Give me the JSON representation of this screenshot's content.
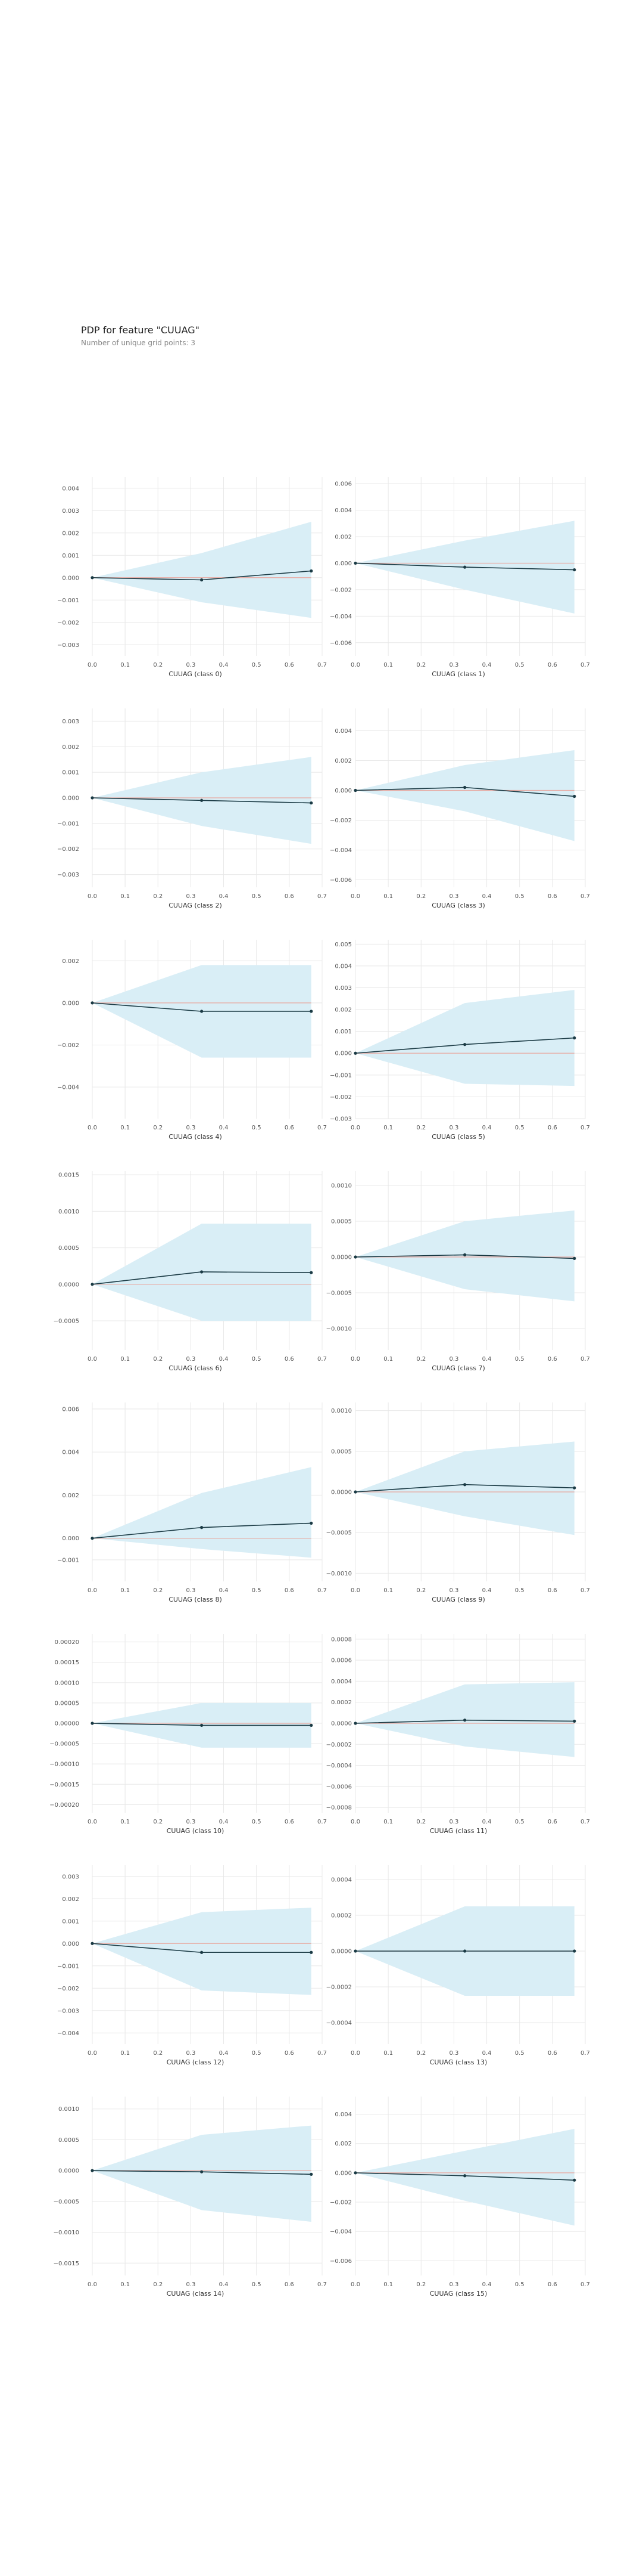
{
  "page": {
    "title": "PDP for feature \"CUUAG\"",
    "subtitle": "Number of unique grid points: 3"
  },
  "colors": {
    "band": "#d9eef6",
    "line": "#1a3a44",
    "zero": "#e8a8a0",
    "grid": "#e8e8e8"
  },
  "chart_data": [
    {
      "type": "line",
      "xlabel": "CUUAG (class 0)",
      "x": [
        0,
        0.333,
        0.667
      ],
      "y": [
        0,
        -0.0001,
        0.0003
      ],
      "band_low": [
        0,
        -0.0011,
        -0.0018
      ],
      "band_high": [
        0,
        0.0011,
        0.0025
      ],
      "xlim": [
        0,
        0.7
      ],
      "ylim": [
        -0.0035,
        0.0045
      ],
      "xticks": [
        "0.0",
        "0.1",
        "0.2",
        "0.3",
        "0.4",
        "0.5",
        "0.6",
        "0.7"
      ],
      "yticks": [
        {
          "v": 0.004,
          "l": "0.004"
        },
        {
          "v": 0.003,
          "l": "0.003"
        },
        {
          "v": 0.002,
          "l": "0.002"
        },
        {
          "v": 0.001,
          "l": "0.001"
        },
        {
          "v": 0,
          "l": "0.000"
        },
        {
          "v": -0.001,
          "l": "−0.001"
        },
        {
          "v": -0.002,
          "l": "−0.002"
        },
        {
          "v": -0.003,
          "l": "−0.003"
        }
      ]
    },
    {
      "type": "line",
      "xlabel": "CUUAG (class 1)",
      "x": [
        0,
        0.333,
        0.667
      ],
      "y": [
        0,
        -0.0003,
        -0.0005
      ],
      "band_low": [
        0,
        -0.002,
        -0.0038
      ],
      "band_high": [
        0,
        0.0017,
        0.0032
      ],
      "xlim": [
        0,
        0.7
      ],
      "ylim": [
        -0.007,
        0.0065
      ],
      "xticks": [
        "0.0",
        "0.1",
        "0.2",
        "0.3",
        "0.4",
        "0.5",
        "0.6",
        "0.7"
      ],
      "yticks": [
        {
          "v": 0.006,
          "l": "0.006"
        },
        {
          "v": 0.004,
          "l": "0.004"
        },
        {
          "v": 0.002,
          "l": "0.002"
        },
        {
          "v": 0,
          "l": "0.000"
        },
        {
          "v": -0.002,
          "l": "−0.002"
        },
        {
          "v": -0.004,
          "l": "−0.004"
        },
        {
          "v": -0.006,
          "l": "−0.006"
        }
      ]
    },
    {
      "type": "line",
      "xlabel": "CUUAG (class 2)",
      "x": [
        0,
        0.333,
        0.667
      ],
      "y": [
        0,
        -0.0001,
        -0.0002
      ],
      "band_low": [
        0,
        -0.0011,
        -0.0018
      ],
      "band_high": [
        0,
        0.001,
        0.0016
      ],
      "xlim": [
        0,
        0.7
      ],
      "ylim": [
        -0.0035,
        0.0035
      ],
      "xticks": [
        "0.0",
        "0.1",
        "0.2",
        "0.3",
        "0.4",
        "0.5",
        "0.6",
        "0.7"
      ],
      "yticks": [
        {
          "v": 0.003,
          "l": "0.003"
        },
        {
          "v": 0.002,
          "l": "0.002"
        },
        {
          "v": 0.001,
          "l": "0.001"
        },
        {
          "v": 0,
          "l": "0.000"
        },
        {
          "v": -0.001,
          "l": "−0.001"
        },
        {
          "v": -0.002,
          "l": "−0.002"
        },
        {
          "v": -0.003,
          "l": "−0.003"
        }
      ]
    },
    {
      "type": "line",
      "xlabel": "CUUAG (class 3)",
      "x": [
        0,
        0.333,
        0.667
      ],
      "y": [
        0,
        0.0002,
        -0.0004
      ],
      "band_low": [
        0,
        -0.0014,
        -0.0034
      ],
      "band_high": [
        0,
        0.0017,
        0.0027
      ],
      "xlim": [
        0,
        0.7
      ],
      "ylim": [
        -0.0065,
        0.0055
      ],
      "xticks": [
        "0.0",
        "0.1",
        "0.2",
        "0.3",
        "0.4",
        "0.5",
        "0.6",
        "0.7"
      ],
      "yticks": [
        {
          "v": 0.004,
          "l": "0.004"
        },
        {
          "v": 0.002,
          "l": "0.002"
        },
        {
          "v": 0,
          "l": "0.000"
        },
        {
          "v": -0.002,
          "l": "−0.002"
        },
        {
          "v": -0.004,
          "l": "−0.004"
        },
        {
          "v": -0.006,
          "l": "−0.006"
        }
      ]
    },
    {
      "type": "line",
      "xlabel": "CUUAG (class 4)",
      "x": [
        0,
        0.333,
        0.667
      ],
      "y": [
        0,
        -0.0004,
        -0.0004
      ],
      "band_low": [
        0,
        -0.0026,
        -0.0026
      ],
      "band_high": [
        0,
        0.0018,
        0.0018
      ],
      "xlim": [
        0,
        0.7
      ],
      "ylim": [
        -0.0055,
        0.003
      ],
      "xticks": [
        "0.0",
        "0.1",
        "0.2",
        "0.3",
        "0.4",
        "0.5",
        "0.6",
        "0.7"
      ],
      "yticks": [
        {
          "v": 0.002,
          "l": "0.002"
        },
        {
          "v": 0,
          "l": "0.000"
        },
        {
          "v": -0.002,
          "l": "−0.002"
        },
        {
          "v": -0.004,
          "l": "−0.004"
        }
      ]
    },
    {
      "type": "line",
      "xlabel": "CUUAG (class 5)",
      "x": [
        0,
        0.333,
        0.667
      ],
      "y": [
        0,
        0.0004,
        0.0007
      ],
      "band_low": [
        0,
        -0.0014,
        -0.0015
      ],
      "band_high": [
        0,
        0.0023,
        0.0029
      ],
      "xlim": [
        0,
        0.7
      ],
      "ylim": [
        -0.003,
        0.0052
      ],
      "xticks": [
        "0.0",
        "0.1",
        "0.2",
        "0.3",
        "0.4",
        "0.5",
        "0.6",
        "0.7"
      ],
      "yticks": [
        {
          "v": 0.005,
          "l": "0.005"
        },
        {
          "v": 0.004,
          "l": "0.004"
        },
        {
          "v": 0.003,
          "l": "0.003"
        },
        {
          "v": 0.002,
          "l": "0.002"
        },
        {
          "v": 0.001,
          "l": "0.001"
        },
        {
          "v": 0,
          "l": "0.000"
        },
        {
          "v": -0.001,
          "l": "−0.001"
        },
        {
          "v": -0.002,
          "l": "−0.002"
        },
        {
          "v": -0.003,
          "l": "−0.003"
        }
      ]
    },
    {
      "type": "line",
      "xlabel": "CUUAG (class 6)",
      "x": [
        0,
        0.333,
        0.667
      ],
      "y": [
        0,
        0.00017,
        0.00016
      ],
      "band_low": [
        0,
        -0.0005,
        -0.0005
      ],
      "band_high": [
        0,
        0.00083,
        0.00083
      ],
      "xlim": [
        0,
        0.7
      ],
      "ylim": [
        -0.0009,
        0.00155
      ],
      "xticks": [
        "0.0",
        "0.1",
        "0.2",
        "0.3",
        "0.4",
        "0.5",
        "0.6",
        "0.7"
      ],
      "yticks": [
        {
          "v": 0.0015,
          "l": "0.0015"
        },
        {
          "v": 0.001,
          "l": "0.0010"
        },
        {
          "v": 0.0005,
          "l": "0.0005"
        },
        {
          "v": 0,
          "l": "0.0000"
        },
        {
          "v": -0.0005,
          "l": "−0.0005"
        }
      ]
    },
    {
      "type": "line",
      "xlabel": "CUUAG (class 7)",
      "x": [
        0,
        0.333,
        0.667
      ],
      "y": [
        0,
        3e-05,
        -2e-05
      ],
      "band_low": [
        0,
        -0.00045,
        -0.00062
      ],
      "band_high": [
        0,
        0.0005,
        0.00065
      ],
      "xlim": [
        0,
        0.7
      ],
      "ylim": [
        -0.0013,
        0.0012
      ],
      "xticks": [
        "0.0",
        "0.1",
        "0.2",
        "0.3",
        "0.4",
        "0.5",
        "0.6",
        "0.7"
      ],
      "yticks": [
        {
          "v": 0.001,
          "l": "0.0010"
        },
        {
          "v": 0.0005,
          "l": "0.0005"
        },
        {
          "v": 0,
          "l": "0.0000"
        },
        {
          "v": -0.0005,
          "l": "−0.0005"
        },
        {
          "v": -0.001,
          "l": "−0.0010"
        }
      ]
    },
    {
      "type": "line",
      "xlabel": "CUUAG (class 8)",
      "x": [
        0,
        0.333,
        0.667
      ],
      "y": [
        0,
        0.0005,
        0.0007
      ],
      "band_low": [
        0,
        -0.0005,
        -0.0009
      ],
      "band_high": [
        0,
        0.0021,
        0.0033
      ],
      "xlim": [
        0,
        0.7
      ],
      "ylim": [
        -0.002,
        0.0063
      ],
      "xticks": [
        "0.0",
        "0.1",
        "0.2",
        "0.3",
        "0.4",
        "0.5",
        "0.6",
        "0.7"
      ],
      "yticks": [
        {
          "v": 0.006,
          "l": "0.006"
        },
        {
          "v": 0.004,
          "l": "0.004"
        },
        {
          "v": 0.002,
          "l": "0.002"
        },
        {
          "v": 0,
          "l": "0.000"
        },
        {
          "v": -0.001,
          "l": "−0.001"
        }
      ]
    },
    {
      "type": "line",
      "xlabel": "CUUAG (class 9)",
      "x": [
        0,
        0.333,
        0.667
      ],
      "y": [
        0,
        9e-05,
        5e-05
      ],
      "band_low": [
        0,
        -0.0003,
        -0.00053
      ],
      "band_high": [
        0,
        0.0005,
        0.00062
      ],
      "xlim": [
        0,
        0.7
      ],
      "ylim": [
        -0.0011,
        0.0011
      ],
      "xticks": [
        "0.0",
        "0.1",
        "0.2",
        "0.3",
        "0.4",
        "0.5",
        "0.6",
        "0.7"
      ],
      "yticks": [
        {
          "v": 0.001,
          "l": "0.0010"
        },
        {
          "v": 0.0005,
          "l": "0.0005"
        },
        {
          "v": 0,
          "l": "0.0000"
        },
        {
          "v": -0.0005,
          "l": "−0.0005"
        },
        {
          "v": -0.001,
          "l": "−0.0010"
        }
      ]
    },
    {
      "type": "line",
      "xlabel": "CUUAG (class 10)",
      "x": [
        0,
        0.333,
        0.667
      ],
      "y": [
        0,
        -5e-06,
        -5e-06
      ],
      "band_low": [
        0,
        -6e-05,
        -6e-05
      ],
      "band_high": [
        0,
        5e-05,
        5e-05
      ],
      "xlim": [
        0,
        0.7
      ],
      "ylim": [
        -0.00022,
        0.00022
      ],
      "xticks": [
        "0.0",
        "0.1",
        "0.2",
        "0.3",
        "0.4",
        "0.5",
        "0.6",
        "0.7"
      ],
      "yticks": [
        {
          "v": 0.0002,
          "l": "0.00020"
        },
        {
          "v": 0.00015,
          "l": "0.00015"
        },
        {
          "v": 0.0001,
          "l": "0.00010"
        },
        {
          "v": 5e-05,
          "l": "0.00005"
        },
        {
          "v": 0,
          "l": "0.00000"
        },
        {
          "v": -5e-05,
          "l": "−0.00005"
        },
        {
          "v": -0.0001,
          "l": "−0.00010"
        },
        {
          "v": -0.00015,
          "l": "−0.00015"
        },
        {
          "v": -0.0002,
          "l": "−0.00020"
        }
      ]
    },
    {
      "type": "line",
      "xlabel": "CUUAG (class 11)",
      "x": [
        0,
        0.333,
        0.667
      ],
      "y": [
        0,
        3e-05,
        2e-05
      ],
      "band_low": [
        0,
        -0.00022,
        -0.00032
      ],
      "band_high": [
        0,
        0.00037,
        0.00039
      ],
      "xlim": [
        0,
        0.7
      ],
      "ylim": [
        -0.00085,
        0.00085
      ],
      "xticks": [
        "0.0",
        "0.1",
        "0.2",
        "0.3",
        "0.4",
        "0.5",
        "0.6",
        "0.7"
      ],
      "yticks": [
        {
          "v": 0.0008,
          "l": "0.0008"
        },
        {
          "v": 0.0006,
          "l": "0.0006"
        },
        {
          "v": 0.0004,
          "l": "0.0004"
        },
        {
          "v": 0.0002,
          "l": "0.0002"
        },
        {
          "v": 0,
          "l": "0.0000"
        },
        {
          "v": -0.0002,
          "l": "−0.0002"
        },
        {
          "v": -0.0004,
          "l": "−0.0004"
        },
        {
          "v": -0.0006,
          "l": "−0.0006"
        },
        {
          "v": -0.0008,
          "l": "−0.0008"
        }
      ]
    },
    {
      "type": "line",
      "xlabel": "CUUAG (class 12)",
      "x": [
        0,
        0.333,
        0.667
      ],
      "y": [
        0,
        -0.0004,
        -0.0004
      ],
      "band_low": [
        0,
        -0.0021,
        -0.0023
      ],
      "band_high": [
        0,
        0.0014,
        0.0016
      ],
      "xlim": [
        0,
        0.7
      ],
      "ylim": [
        -0.0045,
        0.0035
      ],
      "xticks": [
        "0.0",
        "0.1",
        "0.2",
        "0.3",
        "0.4",
        "0.5",
        "0.6",
        "0.7"
      ],
      "yticks": [
        {
          "v": 0.003,
          "l": "0.003"
        },
        {
          "v": 0.002,
          "l": "0.002"
        },
        {
          "v": 0.001,
          "l": "0.001"
        },
        {
          "v": 0,
          "l": "0.000"
        },
        {
          "v": -0.001,
          "l": "−0.001"
        },
        {
          "v": -0.002,
          "l": "−0.002"
        },
        {
          "v": -0.003,
          "l": "−0.003"
        },
        {
          "v": -0.004,
          "l": "−0.004"
        }
      ]
    },
    {
      "type": "line",
      "xlabel": "CUUAG (class 13)",
      "x": [
        0,
        0.333,
        0.667
      ],
      "y": [
        0,
        0,
        0
      ],
      "band_low": [
        0,
        -0.00025,
        -0.00025
      ],
      "band_high": [
        0,
        0.00025,
        0.00025
      ],
      "xlim": [
        0,
        0.7
      ],
      "ylim": [
        -0.00052,
        0.00048
      ],
      "xticks": [
        "0.0",
        "0.1",
        "0.2",
        "0.3",
        "0.4",
        "0.5",
        "0.6",
        "0.7"
      ],
      "yticks": [
        {
          "v": 0.0004,
          "l": "0.0004"
        },
        {
          "v": 0.0002,
          "l": "0.0002"
        },
        {
          "v": 0,
          "l": "0.0000"
        },
        {
          "v": -0.0002,
          "l": "−0.0002"
        },
        {
          "v": -0.0004,
          "l": "−0.0004"
        }
      ]
    },
    {
      "type": "line",
      "xlabel": "CUUAG (class 14)",
      "x": [
        0,
        0.333,
        0.667
      ],
      "y": [
        0,
        -2e-05,
        -6e-05
      ],
      "band_low": [
        0,
        -0.00064,
        -0.00083
      ],
      "band_high": [
        0,
        0.00058,
        0.00073
      ],
      "xlim": [
        0,
        0.7
      ],
      "ylim": [
        -0.0017,
        0.0012
      ],
      "xticks": [
        "0.0",
        "0.1",
        "0.2",
        "0.3",
        "0.4",
        "0.5",
        "0.6",
        "0.7"
      ],
      "yticks": [
        {
          "v": 0.001,
          "l": "0.0010"
        },
        {
          "v": 0.0005,
          "l": "0.0005"
        },
        {
          "v": 0,
          "l": "0.0000"
        },
        {
          "v": -0.0005,
          "l": "−0.0005"
        },
        {
          "v": -0.001,
          "l": "−0.0010"
        },
        {
          "v": -0.0015,
          "l": "−0.0015"
        }
      ]
    },
    {
      "type": "line",
      "xlabel": "CUUAG (class 15)",
      "x": [
        0,
        0.333,
        0.667
      ],
      "y": [
        0,
        -0.0002,
        -0.0005
      ],
      "band_low": [
        0,
        -0.0019,
        -0.0036
      ],
      "band_high": [
        0,
        0.0015,
        0.003
      ],
      "xlim": [
        0,
        0.7
      ],
      "ylim": [
        -0.007,
        0.0052
      ],
      "xticks": [
        "0.0",
        "0.1",
        "0.2",
        "0.3",
        "0.4",
        "0.5",
        "0.6",
        "0.7"
      ],
      "yticks": [
        {
          "v": 0.004,
          "l": "0.004"
        },
        {
          "v": 0.002,
          "l": "0.002"
        },
        {
          "v": 0,
          "l": "0.000"
        },
        {
          "v": -0.002,
          "l": "−0.002"
        },
        {
          "v": -0.004,
          "l": "−0.004"
        },
        {
          "v": -0.006,
          "l": "−0.006"
        }
      ]
    }
  ]
}
